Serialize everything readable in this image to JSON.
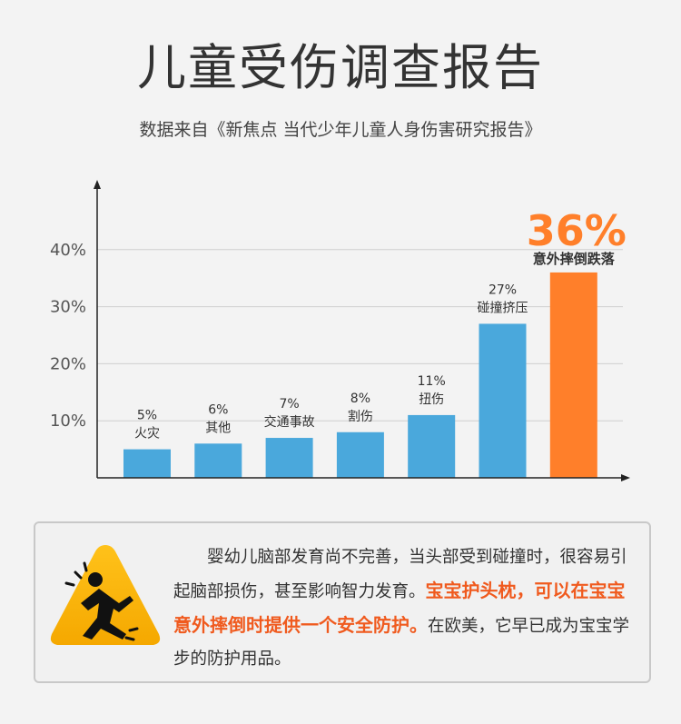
{
  "title": "儿童受伤调查报告",
  "subtitle": "数据来自《新焦点 当代少年儿童人身伤害研究报告》",
  "chart_data": {
    "type": "bar",
    "ylim": [
      0,
      40
    ],
    "yticks": [
      "10%",
      "20%",
      "30%",
      "40%"
    ],
    "ytick_values": [
      10,
      20,
      30,
      40
    ],
    "grid": true,
    "categories": [
      "火灾",
      "其他",
      "交通事故",
      "割伤",
      "扭伤",
      "碰撞挤压",
      "意外摔倒跌落"
    ],
    "values": [
      5,
      6,
      7,
      8,
      11,
      27,
      36
    ],
    "value_labels": [
      "5%",
      "6%",
      "7%",
      "8%",
      "11%",
      "27%",
      "36%"
    ],
    "colors": [
      "#4aa8dc",
      "#4aa8dc",
      "#4aa8dc",
      "#4aa8dc",
      "#4aa8dc",
      "#4aa8dc",
      "#ff7f2a"
    ],
    "highlight_index": 6,
    "highlight_color": "#ff7f2a",
    "axis_color": "#222222",
    "grid_color": "#d0d0d0"
  },
  "note": {
    "text_before": "婴幼儿脑部发育尚不完善，当头部受到碰撞时，很容易引起脑部损伤，甚至影响智力发育。",
    "highlight": "宝宝护头枕，可以在宝宝意外摔倒时提供一个安全防护。",
    "text_after": "在欧美，它早已成为宝宝学步的防护用品。",
    "icon": "fall-warning-icon"
  }
}
